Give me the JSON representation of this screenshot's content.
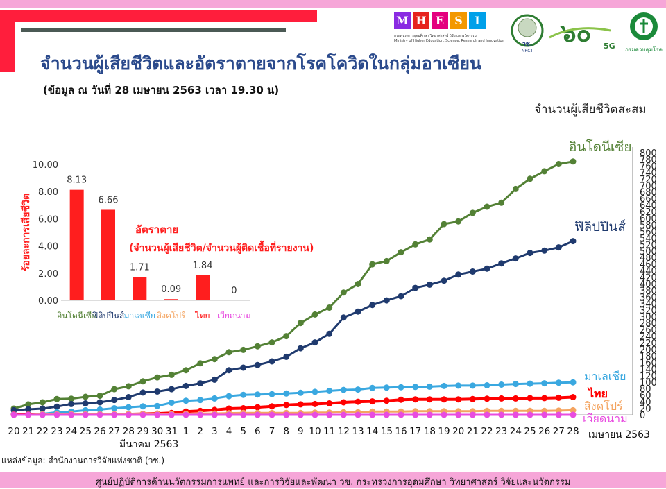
{
  "header": {
    "title": "จำนวนผู้เสียชีวิตและอัตราตายจากโรคโควิดในกลุ่มอาเซียน",
    "subtitle": "(ข้อมูล ณ วันที่ 28 เมษายน 2563 เวลา 19.30 น)"
  },
  "logos": {
    "mhesi_letters": [
      "M",
      "H",
      "E",
      "S",
      "I"
    ],
    "mhesi_colors": [
      "#8a2be2",
      "#e6231e",
      "#e4007f",
      "#f39800",
      "#00a0e9"
    ],
    "mhesi_line1": "กระทรวงการอุดมศึกษา วิทยาศาสตร์ วิจัยและนวัตกรรม",
    "mhesi_line2": "Ministry of Higher Education, Science, Research and Innovation",
    "nrct_text": "วช.",
    "nrct_sub": "NRCT",
    "anniv_text": "๖๐",
    "anniv_sub": "5G",
    "ddc_text": "กรมควบคุมโรค"
  },
  "source": "แหล่งข้อมูล: สำนักงานการวิจัยแห่งชาติ (วช.)",
  "footer": "ศูนย์ปฏิบัติการด้านนวัตกรรมการแพทย์ และการวิจัยและพัฒนา วช.   กระทรวงการอุดมศึกษา วิทยาศาสตร์ วิจัยและนวัตกรรม",
  "chart_data": [
    {
      "type": "line",
      "ylabel": "จำนวนผู้เสียชีวิตสะสม",
      "ylim": [
        0,
        800
      ],
      "yticks": [
        0,
        20,
        40,
        60,
        80,
        100,
        120,
        140,
        160,
        180,
        200,
        220,
        240,
        260,
        280,
        300,
        320,
        340,
        360,
        380,
        400,
        420,
        440,
        460,
        480,
        500,
        520,
        540,
        560,
        580,
        600,
        620,
        640,
        660,
        680,
        700,
        720,
        740,
        760,
        780,
        800
      ],
      "x": [
        "20",
        "21",
        "22",
        "23",
        "24",
        "25",
        "26",
        "27",
        "28",
        "29",
        "30",
        "31",
        "1",
        "2",
        "3",
        "4",
        "5",
        "6",
        "7",
        "8",
        "9",
        "10",
        "11",
        "12",
        "13",
        "14",
        "15",
        "16",
        "17",
        "18",
        "19",
        "20",
        "21",
        "22",
        "23",
        "24",
        "25",
        "26",
        "27",
        "28"
      ],
      "x_labels": [
        "20",
        "21",
        "22",
        "23",
        "24",
        "25",
        "26",
        "27",
        "28",
        "29",
        "30",
        "31",
        "1",
        "2",
        "3",
        "4",
        "5",
        "6",
        "7",
        "8",
        "9",
        "10",
        "11",
        "12",
        "13",
        "14",
        "15",
        "16",
        "17",
        "18",
        "19",
        "20",
        "21",
        "22",
        "23",
        "24",
        "25",
        "26",
        "27",
        "28"
      ],
      "month_labels": [
        "มีนาคม 2563",
        "เมษายน 2563"
      ],
      "series": [
        {
          "name": "อินโดนีเซีย",
          "color": "#538135",
          "values": [
            19,
            32,
            38,
            48,
            49,
            55,
            58,
            78,
            87,
            102,
            114,
            122,
            136,
            157,
            170,
            191,
            198,
            209,
            221,
            240,
            280,
            306,
            327,
            373,
            399,
            459,
            469,
            496,
            520,
            535,
            582,
            590,
            616,
            635,
            647,
            689,
            720,
            743,
            765,
            773
          ]
        },
        {
          "name": "ฟิลิปปินส์",
          "color": "#1f3a6e",
          "values": [
            14,
            17,
            19,
            25,
            33,
            35,
            38,
            45,
            54,
            68,
            71,
            78,
            88,
            96,
            107,
            136,
            144,
            152,
            163,
            177,
            203,
            221,
            247,
            297,
            315,
            335,
            349,
            362,
            387,
            397,
            409,
            428,
            437,
            446,
            462,
            477,
            494,
            501,
            511,
            530
          ]
        },
        {
          "name": "มาเลเซีย",
          "color": "#3aa8e0",
          "values": [
            2,
            2,
            3,
            8,
            10,
            14,
            16,
            20,
            23,
            26,
            27,
            37,
            43,
            45,
            50,
            57,
            61,
            62,
            63,
            65,
            67,
            70,
            73,
            76,
            77,
            82,
            83,
            84,
            85,
            86,
            88,
            89,
            89,
            90,
            92,
            94,
            95,
            96,
            98,
            99
          ]
        },
        {
          "name": "ไทย",
          "color": "#ff0000",
          "values": [
            1,
            1,
            1,
            1,
            1,
            1,
            1,
            1,
            2,
            3,
            4,
            6,
            10,
            12,
            15,
            19,
            20,
            23,
            26,
            30,
            32,
            33,
            35,
            38,
            40,
            41,
            43,
            46,
            47,
            47,
            47,
            47,
            48,
            49,
            50,
            50,
            51,
            51,
            52,
            54
          ]
        },
        {
          "name": "สิงคโปร์",
          "color": "#f4a460",
          "values": [
            0,
            0,
            2,
            2,
            2,
            2,
            2,
            2,
            3,
            3,
            3,
            3,
            3,
            4,
            4,
            5,
            6,
            6,
            6,
            6,
            6,
            7,
            7,
            8,
            8,
            10,
            10,
            10,
            11,
            11,
            11,
            11,
            11,
            12,
            12,
            12,
            12,
            12,
            13,
            14
          ]
        },
        {
          "name": "เวียดนาม",
          "color": "#e84ce0",
          "values": [
            0,
            0,
            0,
            0,
            0,
            0,
            0,
            0,
            0,
            0,
            0,
            0,
            0,
            0,
            0,
            0,
            0,
            0,
            0,
            0,
            0,
            0,
            0,
            0,
            0,
            0,
            0,
            0,
            0,
            0,
            0,
            0,
            0,
            0,
            0,
            0,
            0,
            0,
            0,
            0
          ]
        }
      ],
      "end_labels": [
        {
          "series": "อินโดนีเซีย",
          "text": "อินโดนีเซีย"
        },
        {
          "series": "ฟิลิปปินส์",
          "text": "ฟิลิปปินส์"
        },
        {
          "series": "มาเลเซีย",
          "text": "มาเลเซีย"
        },
        {
          "series": "ไทย",
          "text": "ไทย"
        },
        {
          "series": "สิงคโปร์",
          "text": "สิงคโปร์"
        },
        {
          "series": "เวียดนาม",
          "text": "เวียดนาม"
        }
      ]
    },
    {
      "type": "bar",
      "title": "อัตราตาย",
      "subtitle": "(จำนวนผู้เสียชีวิต/จำนวนผู้ติดเชื้อที่รายงาน)",
      "ylabel": "ร้อยละการเสียชีวิต",
      "ylim": [
        0,
        10
      ],
      "yticks": [
        "0.00",
        "2.00",
        "4.00",
        "6.00",
        "8.00",
        "10.00"
      ],
      "categories": [
        "อินโดนีเซีย",
        "ฟิลิปปินส์",
        "มาเลเซีย",
        "สิงคโปร์",
        "ไทย",
        "เวียดนาม"
      ],
      "category_colors": [
        "#538135",
        "#1f3a6e",
        "#3aa8e0",
        "#f4a460",
        "#ff0000",
        "#e84ce0"
      ],
      "values": [
        8.13,
        6.66,
        1.71,
        0.09,
        1.84,
        0
      ],
      "value_labels": [
        "8.13",
        "6.66",
        "1.71",
        "0.09",
        "1.84",
        "0"
      ],
      "bar_color": "#ff1e1e"
    }
  ]
}
